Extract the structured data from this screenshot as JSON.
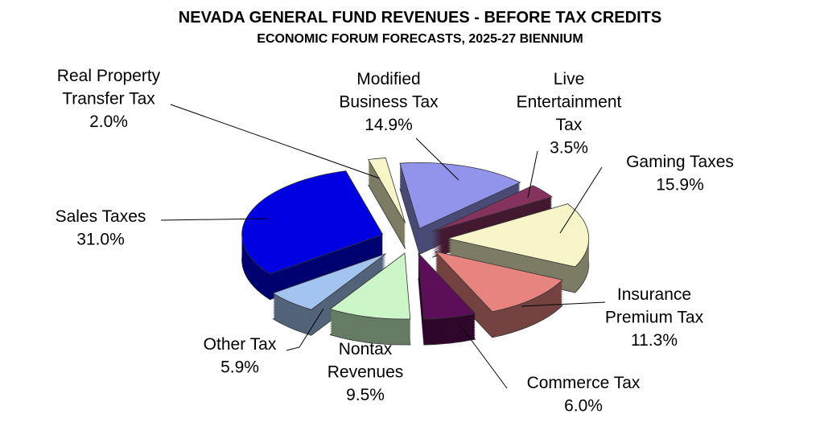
{
  "chart_data": {
    "type": "pie",
    "style": "3d-exploded",
    "title": "NEVADA GENERAL FUND REVENUES - BEFORE TAX CREDITS",
    "subtitle": "ECONOMIC FORUM FORECASTS, 2025-27 BIENNIUM",
    "unit": "%",
    "slices": [
      {
        "name": "Modified Business Tax",
        "label_lines": [
          "Modified",
          "Business Tax",
          "14.9%"
        ],
        "value": 14.9,
        "color": "#9194ea"
      },
      {
        "name": "Live Entertainment Tax",
        "label_lines": [
          "Live",
          "Entertainment",
          "Tax",
          "3.5%"
        ],
        "value": 3.5,
        "color": "#86325f"
      },
      {
        "name": "Gaming Taxes",
        "label_lines": [
          "Gaming Taxes",
          "15.9%"
        ],
        "value": 15.9,
        "color": "#f7f5c8"
      },
      {
        "name": "Insurance Premium Tax",
        "label_lines": [
          "Insurance",
          "Premium Tax",
          "11.3%"
        ],
        "value": 11.3,
        "color": "#e8847f"
      },
      {
        "name": "Commerce Tax",
        "label_lines": [
          "Commerce Tax",
          "6.0%"
        ],
        "value": 6.0,
        "color": "#5c0e59"
      },
      {
        "name": "Nontax Revenues",
        "label_lines": [
          "Nontax",
          "Revenues",
          "9.5%"
        ],
        "value": 9.5,
        "color": "#ccf5c8"
      },
      {
        "name": "Other Tax",
        "label_lines": [
          "Other Tax",
          "5.9%"
        ],
        "value": 5.9,
        "color": "#a3c4f0"
      },
      {
        "name": "Sales Taxes",
        "label_lines": [
          "Sales Taxes",
          "31.0%"
        ],
        "value": 31.0,
        "color": "#0000e0"
      },
      {
        "name": "Real Property Transfer Tax",
        "label_lines": [
          "Real Property",
          "Transfer Tax",
          "2.0%"
        ],
        "value": 2.0,
        "color": "#f7f5c8"
      }
    ]
  }
}
